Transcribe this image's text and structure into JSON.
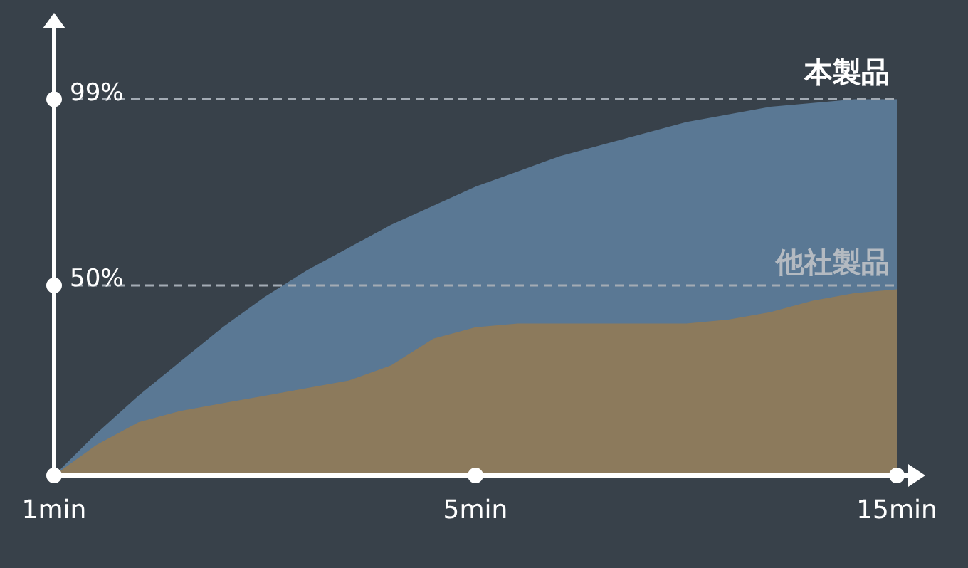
{
  "chart_data": {
    "type": "area",
    "categories": [
      "1min",
      null,
      null,
      null,
      null,
      null,
      null,
      null,
      null,
      null,
      "5min",
      null,
      null,
      null,
      null,
      null,
      null,
      null,
      null,
      null,
      "15min"
    ],
    "series": [
      {
        "name": "本製品",
        "color": "#5a7894",
        "values": [
          0,
          11,
          21,
          30,
          39,
          47,
          54,
          60,
          66,
          71,
          76,
          80,
          84,
          87,
          90,
          93,
          95,
          97,
          98,
          99,
          99
        ]
      },
      {
        "name": "他社製品",
        "color": "#8c7a5c",
        "values": [
          0,
          8,
          14,
          17,
          19,
          21,
          23,
          25,
          29,
          36,
          39,
          40,
          40,
          40,
          40,
          40,
          41,
          43,
          46,
          48,
          49
        ]
      }
    ],
    "ylim": [
      0,
      118
    ],
    "yticks": [
      {
        "value": 50,
        "label": "50%"
      },
      {
        "value": 99,
        "label": "99%"
      }
    ],
    "ref_lines": [
      {
        "axis": "y",
        "value": 99,
        "color": "#a3abb4",
        "line_style": "dashed"
      },
      {
        "axis": "y",
        "value": 50,
        "color": "#a3abb4",
        "line_style": "dashed"
      }
    ],
    "grid": false,
    "legend": false
  }
}
